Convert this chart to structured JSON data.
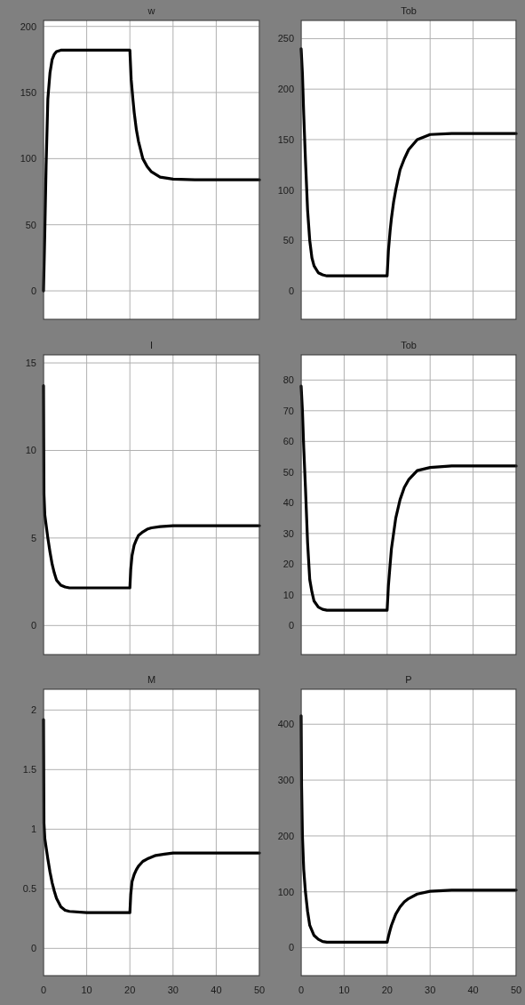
{
  "chart_data": [
    {
      "type": "line",
      "title": "w",
      "color": "#000000",
      "x": [
        0,
        0.3,
        0.6,
        1,
        1.5,
        2,
        2.5,
        3,
        4,
        5,
        10,
        20,
        20.3,
        20.7,
        21,
        21.5,
        22,
        23,
        24,
        25,
        27,
        30,
        35,
        40,
        50
      ],
      "values": [
        0,
        45,
        95,
        145,
        165,
        175,
        179,
        181,
        182,
        182,
        182,
        182,
        160,
        145,
        135,
        122,
        113,
        100,
        94,
        90,
        86,
        84.5,
        84,
        84,
        84
      ],
      "xlim": [
        0,
        50
      ],
      "xticks": [
        {
          "value": 0,
          "label": null
        },
        {
          "value": 10,
          "label": null
        },
        {
          "value": 20,
          "label": null
        },
        {
          "value": 30,
          "label": null
        },
        {
          "value": 40,
          "label": null
        },
        {
          "value": 50,
          "label": null
        }
      ],
      "ylim": [
        -21.5,
        204.5
      ],
      "yticks": [
        0,
        50,
        100,
        150,
        200
      ],
      "grid": true,
      "tick_labels": "y"
    },
    {
      "type": "line",
      "title": "Tob",
      "color": "#000000",
      "x": [
        0,
        0.3,
        0.6,
        1,
        1.5,
        2,
        2.5,
        3,
        4,
        5,
        6,
        10,
        20,
        20.3,
        20.7,
        21,
        21.5,
        22,
        23,
        24,
        25,
        27,
        30,
        35,
        50
      ],
      "values": [
        240,
        215,
        175,
        130,
        80,
        50,
        33,
        25,
        18,
        16,
        15,
        15,
        15,
        40,
        60,
        72,
        88,
        100,
        120,
        131,
        140,
        150,
        155,
        156,
        156
      ],
      "xlim": [
        0,
        50
      ],
      "xticks": [
        {
          "value": 0,
          "label": null
        },
        {
          "value": 10,
          "label": null
        },
        {
          "value": 20,
          "label": null
        },
        {
          "value": 30,
          "label": null
        },
        {
          "value": 40,
          "label": null
        },
        {
          "value": 50,
          "label": null
        }
      ],
      "ylim": [
        -28,
        268
      ],
      "yticks": [
        0,
        50,
        100,
        150,
        200,
        250
      ],
      "grid": true,
      "tick_labels": "y"
    },
    {
      "type": "line",
      "title": "I",
      "color": "#000000",
      "x": [
        0,
        0.1,
        0.3,
        1,
        1.5,
        2,
        2.5,
        3,
        4,
        5,
        6,
        10,
        20,
        20.2,
        20.5,
        21,
        21.5,
        22,
        23,
        24,
        25,
        27,
        30,
        40,
        50
      ],
      "values": [
        13.7,
        7.5,
        6.3,
        5,
        4.2,
        3.5,
        3,
        2.6,
        2.3,
        2.2,
        2.15,
        2.15,
        2.15,
        3.2,
        4,
        4.6,
        4.9,
        5.15,
        5.35,
        5.5,
        5.58,
        5.65,
        5.7,
        5.7,
        5.7
      ],
      "xlim": [
        0,
        50
      ],
      "xticks": [
        {
          "value": 0,
          "label": null
        },
        {
          "value": 10,
          "label": null
        },
        {
          "value": 20,
          "label": null
        },
        {
          "value": 30,
          "label": null
        },
        {
          "value": 40,
          "label": null
        },
        {
          "value": 50,
          "label": null
        }
      ],
      "ylim": [
        -1.66,
        15.46
      ],
      "yticks": [
        0,
        5,
        10,
        15
      ],
      "grid": true,
      "tick_labels": "y"
    },
    {
      "type": "line",
      "title": "Tob",
      "color": "#000000",
      "x": [
        0,
        0.3,
        0.6,
        1,
        1.5,
        2,
        2.5,
        3,
        4,
        5,
        6,
        10,
        20,
        20.3,
        20.7,
        21,
        21.5,
        22,
        23,
        24,
        25,
        27,
        30,
        35,
        50
      ],
      "values": [
        78,
        70,
        58,
        45,
        27,
        15,
        11,
        8,
        6,
        5.3,
        5,
        5,
        5,
        13,
        20,
        25,
        30,
        35,
        41,
        45,
        47.5,
        50.5,
        51.5,
        52,
        52
      ],
      "xlim": [
        0,
        50
      ],
      "xticks": [
        {
          "value": 0,
          "label": null
        },
        {
          "value": 10,
          "label": null
        },
        {
          "value": 20,
          "label": null
        },
        {
          "value": 30,
          "label": null
        },
        {
          "value": 40,
          "label": null
        },
        {
          "value": 50,
          "label": null
        }
      ],
      "ylim": [
        -9.45,
        88.2
      ],
      "yticks": [
        0,
        10,
        20,
        30,
        40,
        50,
        60,
        70,
        80
      ],
      "grid": true,
      "tick_labels": "y"
    },
    {
      "type": "line",
      "title": "M",
      "color": "#000000",
      "x": [
        0,
        0.1,
        0.3,
        1,
        1.5,
        2,
        2.5,
        3,
        4,
        5,
        6,
        10,
        20,
        20.2,
        20.5,
        21,
        21.5,
        22,
        23,
        24,
        26,
        28,
        30,
        40,
        50
      ],
      "values": [
        1.92,
        1.05,
        0.92,
        0.75,
        0.64,
        0.55,
        0.48,
        0.42,
        0.35,
        0.32,
        0.31,
        0.3,
        0.3,
        0.45,
        0.56,
        0.62,
        0.66,
        0.69,
        0.73,
        0.75,
        0.78,
        0.79,
        0.8,
        0.8,
        0.8
      ],
      "xlim": [
        0,
        50
      ],
      "xticks": [
        0,
        10,
        20,
        30,
        40,
        50
      ],
      "ylim": [
        -0.229,
        2.174
      ],
      "yticks": [
        0,
        0.5,
        1,
        1.5,
        2
      ],
      "grid": true
    },
    {
      "type": "line",
      "title": "P",
      "color": "#000000",
      "x": [
        0,
        0.1,
        0.3,
        0.6,
        1,
        1.5,
        2,
        3,
        4,
        5,
        6,
        10,
        20,
        20.3,
        20.7,
        21,
        21.5,
        22,
        23,
        24,
        25,
        27,
        30,
        35,
        50
      ],
      "values": [
        415,
        290,
        200,
        140,
        100,
        65,
        40,
        22,
        15,
        11,
        10,
        10,
        10,
        20,
        32,
        40,
        50,
        60,
        73,
        82,
        88,
        96,
        101,
        103,
        103
      ],
      "xlim": [
        0,
        50
      ],
      "xticks": [
        0,
        10,
        20,
        30,
        40,
        50
      ],
      "ylim": [
        -50,
        462.5
      ],
      "yticks": [
        0,
        100,
        200,
        300,
        400
      ],
      "grid": true
    }
  ]
}
